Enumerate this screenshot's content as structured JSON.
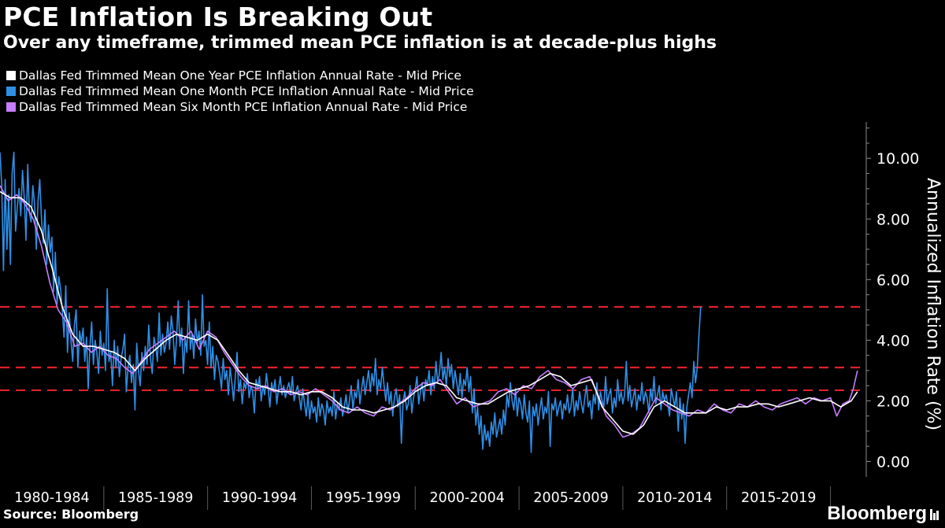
{
  "header": {
    "title": "PCE Inflation Is Breaking Out",
    "subtitle": "Over any timeframe, trimmed mean PCE inflation is at decade-plus highs"
  },
  "legend": [
    {
      "label": "Dallas Fed Trimmed Mean One Year PCE Inflation Annual Rate - Mid Price",
      "color": "#ffffff"
    },
    {
      "label": "Dallas Fed Trimmed Mean One Month PCE Inflation Annual Rate - Mid Price",
      "color": "#2f8fe6"
    },
    {
      "label": "Dallas Fed Trimmed Mean Six Month PCE Inflation Annual Rate - Mid Price",
      "color": "#c77dff"
    }
  ],
  "footer": {
    "source": "Source: Bloomberg",
    "brand": "Bloomberg"
  },
  "chart_data": {
    "type": "line",
    "ylabel": "Annualized Inflation Rate (%)",
    "ylim": [
      -0.3,
      11.2
    ],
    "yticks": [
      "0.00",
      "2.00",
      "4.00",
      "6.00",
      "8.00",
      "10.00"
    ],
    "x_categories": [
      "1980-1984",
      "1985-1989",
      "1990-1994",
      "1995-1999",
      "2000-2004",
      "2005-2009",
      "2010-2014",
      "2015-2019"
    ],
    "x_range": [
      "1980-01",
      "2021-04"
    ],
    "reference_lines": [
      5.1,
      3.1,
      2.35
    ],
    "reference_color": "#e0202a",
    "series": [
      {
        "name": "Dallas Fed Trimmed Mean One Year PCE Inflation Annual Rate - Mid Price",
        "color": "#ffffff",
        "width": 1.6,
        "values": [
          [
            1980.0,
            8.9
          ],
          [
            1980.5,
            8.7
          ],
          [
            1981.0,
            8.7
          ],
          [
            1981.5,
            8.4
          ],
          [
            1982.0,
            7.6
          ],
          [
            1982.5,
            6.4
          ],
          [
            1983.0,
            5.1
          ],
          [
            1983.5,
            4.2
          ],
          [
            1984.0,
            3.8
          ],
          [
            1984.5,
            3.8
          ],
          [
            1985.0,
            3.7
          ],
          [
            1985.5,
            3.6
          ],
          [
            1986.0,
            3.4
          ],
          [
            1986.5,
            3.0
          ],
          [
            1987.0,
            3.4
          ],
          [
            1987.5,
            3.7
          ],
          [
            1988.0,
            4.0
          ],
          [
            1988.5,
            4.2
          ],
          [
            1989.0,
            4.1
          ],
          [
            1989.5,
            4.0
          ],
          [
            1990.0,
            4.2
          ],
          [
            1990.5,
            4.0
          ],
          [
            1991.0,
            3.5
          ],
          [
            1991.5,
            3.0
          ],
          [
            1992.0,
            2.6
          ],
          [
            1992.5,
            2.5
          ],
          [
            1993.0,
            2.4
          ],
          [
            1993.5,
            2.3
          ],
          [
            1994.0,
            2.3
          ],
          [
            1994.5,
            2.2
          ],
          [
            1995.0,
            2.3
          ],
          [
            1995.5,
            2.3
          ],
          [
            1996.0,
            2.1
          ],
          [
            1996.5,
            1.8
          ],
          [
            1997.0,
            1.7
          ],
          [
            1997.5,
            1.7
          ],
          [
            1998.0,
            1.6
          ],
          [
            1998.5,
            1.7
          ],
          [
            1999.0,
            1.8
          ],
          [
            1999.5,
            2.0
          ],
          [
            2000.0,
            2.3
          ],
          [
            2000.5,
            2.5
          ],
          [
            2001.0,
            2.6
          ],
          [
            2001.5,
            2.5
          ],
          [
            2002.0,
            2.1
          ],
          [
            2002.5,
            2.0
          ],
          [
            2003.0,
            1.9
          ],
          [
            2003.5,
            1.9
          ],
          [
            2004.0,
            2.1
          ],
          [
            2004.5,
            2.3
          ],
          [
            2005.0,
            2.4
          ],
          [
            2005.5,
            2.5
          ],
          [
            2006.0,
            2.7
          ],
          [
            2006.5,
            2.9
          ],
          [
            2007.0,
            2.8
          ],
          [
            2007.5,
            2.5
          ],
          [
            2008.0,
            2.6
          ],
          [
            2008.5,
            2.7
          ],
          [
            2009.0,
            1.8
          ],
          [
            2009.5,
            1.4
          ],
          [
            2010.0,
            1.0
          ],
          [
            2010.5,
            0.9
          ],
          [
            2011.0,
            1.2
          ],
          [
            2011.5,
            1.8
          ],
          [
            2012.0,
            2.0
          ],
          [
            2012.5,
            1.8
          ],
          [
            2013.0,
            1.6
          ],
          [
            2013.5,
            1.6
          ],
          [
            2014.0,
            1.6
          ],
          [
            2014.5,
            1.8
          ],
          [
            2015.0,
            1.7
          ],
          [
            2015.5,
            1.8
          ],
          [
            2016.0,
            1.8
          ],
          [
            2016.5,
            1.9
          ],
          [
            2017.0,
            1.9
          ],
          [
            2017.5,
            1.8
          ],
          [
            2018.0,
            1.9
          ],
          [
            2018.5,
            2.0
          ],
          [
            2019.0,
            2.1
          ],
          [
            2019.5,
            2.0
          ],
          [
            2020.0,
            2.0
          ],
          [
            2020.5,
            1.8
          ],
          [
            2021.0,
            2.0
          ],
          [
            2021.3,
            2.3
          ]
        ]
      },
      {
        "name": "Dallas Fed Trimmed Mean Six Month PCE Inflation Annual Rate - Mid Price",
        "color": "#c77dff",
        "width": 1.6,
        "values": [
          [
            1980.0,
            9.1
          ],
          [
            1980.4,
            8.6
          ],
          [
            1980.8,
            8.8
          ],
          [
            1981.2,
            8.5
          ],
          [
            1981.6,
            8.0
          ],
          [
            1982.0,
            7.1
          ],
          [
            1982.4,
            5.9
          ],
          [
            1982.8,
            5.0
          ],
          [
            1983.2,
            4.6
          ],
          [
            1983.6,
            3.8
          ],
          [
            1984.0,
            3.9
          ],
          [
            1984.4,
            3.6
          ],
          [
            1984.8,
            3.8
          ],
          [
            1985.2,
            3.5
          ],
          [
            1985.6,
            3.4
          ],
          [
            1986.0,
            3.1
          ],
          [
            1986.4,
            2.9
          ],
          [
            1986.8,
            3.3
          ],
          [
            1987.2,
            3.7
          ],
          [
            1987.6,
            3.9
          ],
          [
            1988.0,
            4.1
          ],
          [
            1988.4,
            4.3
          ],
          [
            1988.8,
            4.0
          ],
          [
            1989.2,
            4.3
          ],
          [
            1989.6,
            3.7
          ],
          [
            1990.0,
            4.3
          ],
          [
            1990.4,
            4.1
          ],
          [
            1990.8,
            3.6
          ],
          [
            1991.2,
            3.2
          ],
          [
            1991.6,
            2.8
          ],
          [
            1992.0,
            2.5
          ],
          [
            1992.4,
            2.4
          ],
          [
            1992.8,
            2.5
          ],
          [
            1993.2,
            2.3
          ],
          [
            1993.6,
            2.4
          ],
          [
            1994.0,
            2.2
          ],
          [
            1994.4,
            2.3
          ],
          [
            1994.8,
            2.2
          ],
          [
            1995.2,
            2.4
          ],
          [
            1995.6,
            2.2
          ],
          [
            1996.0,
            2.0
          ],
          [
            1996.4,
            1.7
          ],
          [
            1996.8,
            1.6
          ],
          [
            1997.2,
            1.8
          ],
          [
            1997.6,
            1.6
          ],
          [
            1998.0,
            1.5
          ],
          [
            1998.4,
            1.8
          ],
          [
            1998.8,
            1.7
          ],
          [
            1999.2,
            1.9
          ],
          [
            1999.6,
            2.1
          ],
          [
            2000.0,
            2.4
          ],
          [
            2000.4,
            2.6
          ],
          [
            2000.8,
            2.5
          ],
          [
            2001.2,
            2.7
          ],
          [
            2001.6,
            2.3
          ],
          [
            2002.0,
            1.9
          ],
          [
            2002.4,
            2.1
          ],
          [
            2002.8,
            1.8
          ],
          [
            2003.2,
            1.9
          ],
          [
            2003.6,
            2.0
          ],
          [
            2004.0,
            2.3
          ],
          [
            2004.4,
            2.4
          ],
          [
            2004.8,
            2.2
          ],
          [
            2005.2,
            2.5
          ],
          [
            2005.6,
            2.4
          ],
          [
            2006.0,
            2.8
          ],
          [
            2006.4,
            3.0
          ],
          [
            2006.8,
            2.7
          ],
          [
            2007.2,
            2.6
          ],
          [
            2007.6,
            2.4
          ],
          [
            2008.0,
            2.7
          ],
          [
            2008.4,
            2.8
          ],
          [
            2008.8,
            2.2
          ],
          [
            2009.2,
            1.5
          ],
          [
            2009.6,
            1.2
          ],
          [
            2010.0,
            0.8
          ],
          [
            2010.4,
            0.9
          ],
          [
            2010.8,
            1.1
          ],
          [
            2011.2,
            1.6
          ],
          [
            2011.6,
            2.1
          ],
          [
            2012.0,
            1.9
          ],
          [
            2012.4,
            1.7
          ],
          [
            2012.8,
            1.6
          ],
          [
            2013.2,
            1.5
          ],
          [
            2013.6,
            1.7
          ],
          [
            2014.0,
            1.6
          ],
          [
            2014.4,
            1.9
          ],
          [
            2014.8,
            1.7
          ],
          [
            2015.2,
            1.6
          ],
          [
            2015.6,
            1.9
          ],
          [
            2016.0,
            1.8
          ],
          [
            2016.4,
            2.0
          ],
          [
            2016.8,
            1.8
          ],
          [
            2017.2,
            1.7
          ],
          [
            2017.6,
            1.9
          ],
          [
            2018.0,
            2.0
          ],
          [
            2018.4,
            2.1
          ],
          [
            2018.8,
            1.9
          ],
          [
            2019.2,
            2.1
          ],
          [
            2019.6,
            2.0
          ],
          [
            2020.0,
            2.1
          ],
          [
            2020.3,
            1.5
          ],
          [
            2020.6,
            1.9
          ],
          [
            2020.9,
            2.0
          ],
          [
            2021.1,
            2.4
          ],
          [
            2021.3,
            3.0
          ]
        ]
      }
    ],
    "monthly_series": {
      "name": "Dallas Fed Trimmed Mean One Month PCE Inflation Annual Rate - Mid Price",
      "color": "#2f8fe6",
      "start": 1980.0,
      "step": 0.0833333,
      "values": [
        10.2,
        9.1,
        6.3,
        9.3,
        7.0,
        8.8,
        6.5,
        9.5,
        10.2,
        7.6,
        8.4,
        9.0,
        8.1,
        9.6,
        8.7,
        7.3,
        9.8,
        8.2,
        7.9,
        9.1,
        8.5,
        7.0,
        8.6,
        9.3,
        8.0,
        7.2,
        8.3,
        6.5,
        7.8,
        6.9,
        7.4,
        5.6,
        6.9,
        5.2,
        6.1,
        5.7,
        5.0,
        4.1,
        5.8,
        3.6,
        4.9,
        4.0,
        3.3,
        4.5,
        5.0,
        3.1,
        4.3,
        3.9,
        4.4,
        3.3,
        4.1,
        2.4,
        3.8,
        4.6,
        3.2,
        4.0,
        3.6,
        2.9,
        4.3,
        3.5,
        3.9,
        3.0,
        5.7,
        3.3,
        3.6,
        2.5,
        4.0,
        3.1,
        3.8,
        2.8,
        3.4,
        3.7,
        4.2,
        2.3,
        3.1,
        3.5,
        2.6,
        3.2,
        1.7,
        3.9,
        3.0,
        2.5,
        3.6,
        3.0,
        3.8,
        3.2,
        4.5,
        3.4,
        2.9,
        4.1,
        3.8,
        3.3,
        4.9,
        3.5,
        4.2,
        3.6,
        3.9,
        4.6,
        3.7,
        4.8,
        4.3,
        3.2,
        4.0,
        5.3,
        3.8,
        4.4,
        2.9,
        4.1,
        3.6,
        5.3,
        3.7,
        4.2,
        3.4,
        4.7,
        3.9,
        4.3,
        3.5,
        5.5,
        3.8,
        4.0,
        3.2,
        4.6,
        3.1,
        3.8,
        2.7,
        3.5,
        3.3,
        2.9,
        2.4,
        3.4,
        2.7,
        3.0,
        2.2,
        3.1,
        2.6,
        2.0,
        2.8,
        3.6,
        2.3,
        2.7,
        1.9,
        2.6,
        2.4,
        2.9,
        2.1,
        2.5,
        2.3,
        1.6,
        2.7,
        2.4,
        2.8,
        2.0,
        2.5,
        2.2,
        2.9,
        2.4,
        1.8,
        2.6,
        2.3,
        2.7,
        1.9,
        2.4,
        2.8,
        2.2,
        2.5,
        2.1,
        2.4,
        2.6,
        2.2,
        2.8,
        2.0,
        2.3,
        2.5,
        2.1,
        1.7,
        2.4,
        1.9,
        1.5,
        2.2,
        1.4,
        2.0,
        1.6,
        1.8,
        1.3,
        2.1,
        1.5,
        1.9,
        1.7,
        1.2,
        2.0,
        1.6,
        1.8,
        1.5,
        2.3,
        1.4,
        1.9,
        1.7,
        2.1,
        1.5,
        1.8,
        2.2,
        1.6,
        2.0,
        2.5,
        1.7,
        2.3,
        2.1,
        2.7,
        1.9,
        2.4,
        2.8,
        2.2,
        2.6,
        3.0,
        2.3,
        2.9,
        2.5,
        3.4,
        2.2,
        2.7,
        2.4,
        3.1,
        2.5,
        2.0,
        2.6,
        1.9,
        2.3,
        1.5,
        2.1,
        2.4,
        1.8,
        2.2,
        0.6,
        2.0,
        2.3,
        1.7,
        1.9,
        2.5,
        1.6,
        2.1,
        2.4,
        2.8,
        1.9,
        2.3,
        2.6,
        2.0,
        2.7,
        2.5,
        3.0,
        2.2,
        2.8,
        2.4,
        3.3,
        2.6,
        2.9,
        3.6,
        2.7,
        3.1,
        2.5,
        3.4,
        2.8,
        3.2,
        2.4,
        3.0,
        2.6,
        2.2,
        2.9,
        2.1,
        2.7,
        2.5,
        3.1,
        2.3,
        2.8,
        1.6,
        2.4,
        1.2,
        1.8,
        0.9,
        1.5,
        0.4,
        1.2,
        0.7,
        1.0,
        0.5,
        1.3,
        0.9,
        1.6,
        0.8,
        1.1,
        1.4,
        0.9,
        1.7,
        1.2,
        2.2,
        1.8,
        2.6,
        2.0,
        1.7,
        2.4,
        1.5,
        2.1,
        1.9,
        1.4,
        2.2,
        1.6,
        1.3,
        2.0,
        0.3,
        1.8,
        1.5,
        1.9,
        1.2,
        1.7,
        2.1,
        1.4,
        1.8,
        1.6,
        2.3,
        0.5,
        1.9,
        1.7,
        2.1,
        1.5,
        1.8,
        2.0,
        1.4,
        1.9,
        1.7,
        2.2,
        1.6,
        1.8,
        2.4,
        1.5,
        2.0,
        1.7,
        2.3,
        1.9,
        1.6,
        2.1,
        2.5,
        1.8,
        2.0,
        1.4,
        2.2,
        1.9,
        2.6,
        1.7,
        2.3,
        2.0,
        1.8,
        2.8,
        1.9,
        2.2,
        2.4,
        1.6,
        2.1,
        1.8,
        2.7,
        2.0,
        2.3,
        1.9,
        2.2,
        3.3,
        2.0,
        2.5,
        1.8,
        2.1,
        2.4,
        1.7,
        2.2,
        2.0,
        2.6,
        1.9,
        2.3,
        2.1,
        1.6,
        2.4,
        2.0,
        2.8,
        1.9,
        2.2,
        2.5,
        1.7,
        2.3,
        2.0,
        2.2,
        1.9,
        1.5,
        2.4,
        2.1,
        1.8,
        2.3,
        1.0,
        2.1,
        1.4,
        1.9,
        0.6,
        1.8,
        2.2,
        2.6,
        2.1,
        3.3,
        2.6,
        3.1,
        4.2,
        5.1
      ]
    }
  }
}
